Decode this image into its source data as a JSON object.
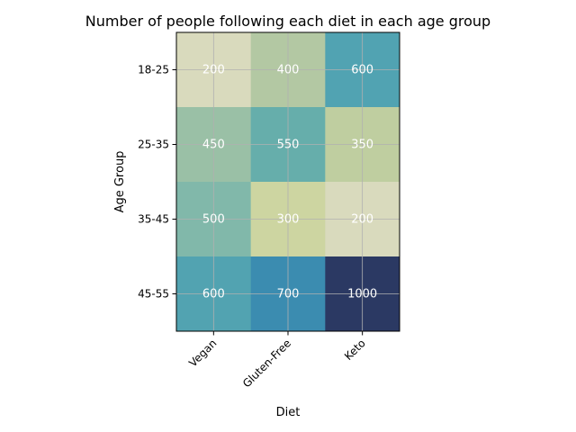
{
  "chart_data": {
    "type": "heatmap",
    "title": "Number of people following each diet in each age group",
    "xlabel": "Diet",
    "ylabel": "Age Group",
    "x_categories": [
      "Vegan",
      "Gluten-Free",
      "Keto"
    ],
    "y_categories": [
      "18-25",
      "25-35",
      "35-45",
      "45-55"
    ],
    "values": [
      [
        200,
        400,
        600
      ],
      [
        450,
        550,
        350
      ],
      [
        500,
        300,
        200
      ],
      [
        600,
        700,
        1000
      ]
    ],
    "colormap": "YlGnBu-like",
    "value_range": [
      200,
      1000
    ],
    "grid": true,
    "colors": [
      [
        "#d9dabd",
        "#b3c8a3",
        "#51a3b2"
      ],
      [
        "#9ac0a6",
        "#66aeab",
        "#bfcea0"
      ],
      [
        "#81b8aa",
        "#cdd5a1",
        "#d9dabd"
      ],
      [
        "#52a3b1",
        "#3b8cb0",
        "#2b3963"
      ]
    ]
  }
}
